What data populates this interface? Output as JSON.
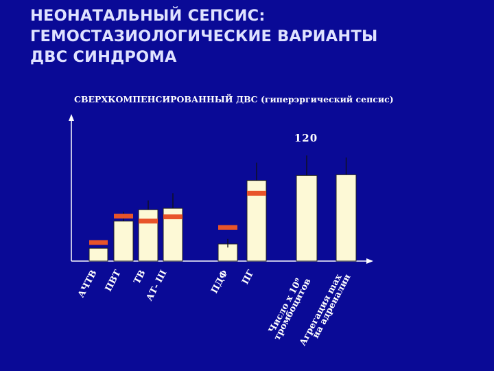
{
  "header": {
    "title": "НЕОНАТАЛЬНЫЙ  СЕПСИС:\nГЕМОСТАЗИОЛОГИЧЕСКИЕ ВАРИАНТЫ\nДВС СИНДРОМА",
    "subtitle": "СВЕРХКОМПЕНСИРОВАННЫЙ  ДВС (гиперэргический сепсис)"
  },
  "chart_data": {
    "type": "bar",
    "title": "СВЕРХКОМПЕНСИРОВАННЫЙ  ДВС (гиперэргический сепсис)",
    "annotation": "120",
    "ylim": [
      0,
      155
    ],
    "grid": false,
    "categories": [
      "АЧТВ",
      "ПВТ",
      "ТВ",
      "АТ- III",
      "ПДФ",
      "ПГ",
      "Число х 10⁹ тромбоцитов",
      "Агрегация max на адреналин"
    ],
    "values": [
      18,
      56,
      72,
      74,
      24,
      113,
      120,
      121
    ],
    "reference_norm": [
      26,
      63,
      56,
      62,
      47,
      95,
      null,
      null
    ],
    "error_upper": [
      null,
      69,
      85,
      95,
      31,
      138,
      148,
      145
    ],
    "error_lower": [
      null,
      null,
      null,
      null,
      19,
      null,
      null,
      null
    ],
    "colors": {
      "background": "#0a0a96",
      "bar": "#fdf9d6",
      "norm_marker": "#e8542a",
      "axis": "#ffffff",
      "text": "#ffffff",
      "title": "#dfe2ff"
    }
  }
}
